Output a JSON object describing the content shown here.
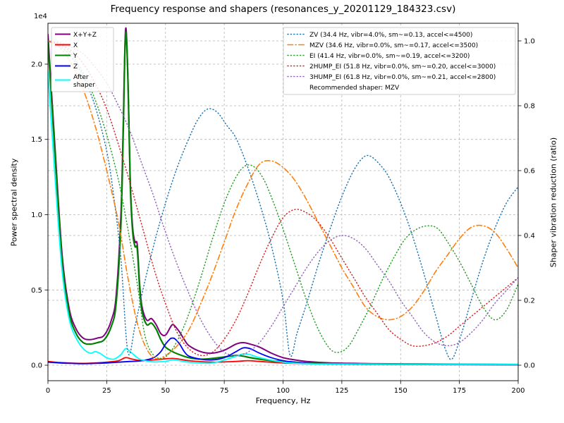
{
  "chart_data": {
    "type": "line",
    "title": "Frequency response and shapers (resonances_y_20201129_184323.csv)",
    "xlabel": "Frequency, Hz",
    "ylabel_left": "Power spectral density",
    "ylabel_right": "Shaper vibration reduction (ratio)",
    "offset_text": "1e4",
    "grid": true,
    "xlim": [
      0,
      200
    ],
    "ylim_left": [
      -1030,
      22716
    ],
    "ylim_right": [
      -0.0478,
      1.0543
    ],
    "x_ticks": [
      0,
      25,
      50,
      75,
      100,
      125,
      150,
      175,
      200
    ],
    "y_ticks_left": [
      {
        "v": 0,
        "label": "0.0"
      },
      {
        "v": 5000,
        "label": "0.5"
      },
      {
        "v": 10000,
        "label": "1.0"
      },
      {
        "v": 15000,
        "label": "1.5"
      },
      {
        "v": 20000,
        "label": "2.0"
      }
    ],
    "y_ticks_right": [
      {
        "v": 0.0,
        "label": "0.0"
      },
      {
        "v": 0.2,
        "label": "0.2"
      },
      {
        "v": 0.4,
        "label": "0.4"
      },
      {
        "v": 0.6,
        "label": "0.6"
      },
      {
        "v": 0.8,
        "label": "0.8"
      },
      {
        "v": 1.0,
        "label": "1.0"
      }
    ],
    "legend_psd": {
      "items": [
        {
          "label": "X+Y+Z",
          "color": "#800080"
        },
        {
          "label": "X",
          "color": "#ff0000"
        },
        {
          "label": "Y",
          "color": "#008000"
        },
        {
          "label": "Z",
          "color": "#0000ff"
        },
        {
          "label": "After shaper",
          "lines": [
            "After",
            "shaper"
          ],
          "color": "#00ffff"
        }
      ]
    },
    "legend_shapers": {
      "items": [
        {
          "label": "ZV (34.4 Hz, vibr=4.0%, sm~=0.13, accel<=4500)",
          "color": "#1f77b4",
          "style": "dotted"
        },
        {
          "label": "MZV (34.6 Hz, vibr=0.0%, sm~=0.17, accel<=3500)",
          "color": "#ff7f0e",
          "style": "dashdot"
        },
        {
          "label": "EI (41.4 Hz, vibr=0.0%, sm~=0.19, accel<=3200)",
          "color": "#2ca02c",
          "style": "dotted"
        },
        {
          "label": "2HUMP_EI (51.8 Hz, vibr=0.0%, sm~=0.20, accel<=3000)",
          "color": "#d62728",
          "style": "dotted"
        },
        {
          "label": "3HUMP_EI (61.8 Hz, vibr=0.0%, sm~=0.21, accel<=2800)",
          "color": "#9467bd",
          "style": "dotted"
        }
      ],
      "note": "Recommended shaper: MZV"
    },
    "series": [
      {
        "name": "psd-xyz",
        "label": "X+Y+Z",
        "axis": "left",
        "color": "#800080",
        "style": "solid",
        "width": 2,
        "x": [
          0,
          3,
          6,
          9,
          12,
          15,
          18,
          21,
          24,
          27,
          29,
          31,
          32,
          33,
          34,
          35,
          36,
          37,
          38,
          39,
          40,
          42,
          44,
          46,
          48,
          50,
          52,
          53,
          54,
          56,
          58,
          60,
          65,
          70,
          75,
          80,
          83,
          86,
          90,
          95,
          100,
          105,
          110,
          120,
          140,
          160,
          180,
          200
        ],
        "y": [
          22000,
          14500,
          7400,
          3800,
          2400,
          1800,
          1700,
          1800,
          2000,
          3000,
          4600,
          9900,
          15800,
          22300,
          19300,
          12400,
          9200,
          8200,
          8000,
          5400,
          3900,
          3000,
          3100,
          2700,
          2100,
          2000,
          2500,
          2700,
          2600,
          2200,
          1700,
          1300,
          900,
          800,
          1000,
          1400,
          1500,
          1400,
          1200,
          800,
          500,
          350,
          250,
          150,
          100,
          80,
          60,
          50
        ]
      },
      {
        "name": "psd-x",
        "label": "X",
        "axis": "left",
        "color": "#ff0000",
        "style": "solid",
        "width": 1.8,
        "x": [
          0,
          5,
          10,
          15,
          20,
          25,
          30,
          33,
          36,
          40,
          45,
          50,
          53,
          56,
          60,
          70,
          80,
          85,
          90,
          100,
          110,
          120,
          150,
          200
        ],
        "y": [
          250,
          180,
          140,
          120,
          150,
          200,
          300,
          500,
          400,
          300,
          350,
          420,
          450,
          400,
          300,
          200,
          250,
          300,
          250,
          150,
          100,
          80,
          50,
          40
        ]
      },
      {
        "name": "psd-y",
        "label": "Y",
        "axis": "left",
        "color": "#008000",
        "style": "solid",
        "width": 2.2,
        "x": [
          0,
          3,
          6,
          9,
          12,
          15,
          18,
          21,
          24,
          27,
          29,
          31,
          32,
          33,
          34,
          35,
          36,
          37,
          38,
          39,
          40,
          42,
          44,
          46,
          48,
          50,
          53,
          56,
          60,
          65,
          70,
          75,
          80,
          83,
          86,
          90,
          95,
          100,
          110,
          120,
          140,
          160,
          180,
          200
        ],
        "y": [
          21500,
          14000,
          7000,
          3500,
          2100,
          1500,
          1400,
          1500,
          1700,
          2600,
          4100,
          9200,
          15200,
          22000,
          19000,
          12100,
          8900,
          7900,
          7700,
          5100,
          3600,
          2700,
          2800,
          2400,
          1700,
          1200,
          900,
          700,
          500,
          400,
          450,
          550,
          650,
          600,
          500,
          400,
          300,
          250,
          150,
          100,
          80,
          60,
          50,
          40
        ]
      },
      {
        "name": "psd-z",
        "label": "Z",
        "axis": "left",
        "color": "#0000ff",
        "style": "solid",
        "width": 1.8,
        "x": [
          0,
          5,
          10,
          15,
          20,
          25,
          30,
          35,
          40,
          45,
          48,
          50,
          52,
          53,
          54,
          56,
          58,
          60,
          65,
          70,
          75,
          80,
          83,
          86,
          90,
          95,
          100,
          105,
          110,
          120,
          140,
          200
        ],
        "y": [
          200,
          150,
          120,
          100,
          120,
          150,
          200,
          250,
          300,
          500,
          900,
          1400,
          1750,
          1800,
          1750,
          1400,
          900,
          600,
          400,
          350,
          500,
          900,
          1150,
          1100,
          800,
          500,
          300,
          200,
          120,
          80,
          50,
          30
        ]
      },
      {
        "name": "psd-after-shaper",
        "label": "After shaper",
        "axis": "left",
        "color": "#00ffff",
        "style": "solid",
        "width": 1.8,
        "x": [
          0,
          3,
          6,
          9,
          12,
          15,
          18,
          20,
          22,
          25,
          28,
          31,
          33,
          35,
          38,
          40,
          45,
          50,
          53,
          56,
          60,
          70,
          80,
          83,
          86,
          90,
          100,
          110,
          120,
          150,
          200
        ],
        "y": [
          19500,
          12500,
          6300,
          3100,
          1800,
          1100,
          800,
          900,
          800,
          500,
          400,
          700,
          1100,
          900,
          500,
          350,
          220,
          260,
          350,
          300,
          200,
          150,
          600,
          750,
          700,
          500,
          200,
          100,
          80,
          60,
          50
        ]
      },
      {
        "name": "shaper-zv",
        "label": "ZV",
        "axis": "right",
        "color": "#1f77b4",
        "style": "dotted",
        "width": 1.5,
        "x": [
          0,
          5,
          10,
          15,
          20,
          25,
          28,
          31,
          34,
          37,
          40,
          45,
          50,
          55,
          60,
          64,
          68,
          72,
          76,
          80,
          85,
          90,
          95,
          100,
          103,
          106,
          110,
          115,
          120,
          125,
          130,
          134,
          137,
          141,
          145,
          150,
          155,
          160,
          165,
          169,
          172,
          176,
          180,
          185,
          190,
          195,
          200
        ],
        "y": [
          1.0,
          0.985,
          0.95,
          0.89,
          0.8,
          0.66,
          0.52,
          0.33,
          0.04,
          0.12,
          0.22,
          0.37,
          0.5,
          0.61,
          0.7,
          0.76,
          0.79,
          0.78,
          0.74,
          0.7,
          0.61,
          0.5,
          0.37,
          0.2,
          0.03,
          0.1,
          0.19,
          0.31,
          0.42,
          0.52,
          0.6,
          0.64,
          0.645,
          0.62,
          0.58,
          0.5,
          0.4,
          0.28,
          0.15,
          0.05,
          0.02,
          0.1,
          0.2,
          0.32,
          0.42,
          0.5,
          0.55
        ]
      },
      {
        "name": "shaper-mzv",
        "label": "MZV",
        "axis": "right",
        "color": "#ff7f0e",
        "style": "dashdot",
        "width": 1.6,
        "x": [
          0,
          5,
          10,
          15,
          20,
          25,
          30,
          34,
          38,
          42,
          46,
          50,
          55,
          60,
          65,
          70,
          75,
          80,
          85,
          90,
          95,
          100,
          105,
          110,
          115,
          120,
          125,
          130,
          135,
          140,
          145,
          150,
          155,
          160,
          165,
          170,
          175,
          180,
          185,
          190,
          195,
          200
        ],
        "y": [
          1.0,
          0.98,
          0.93,
          0.85,
          0.74,
          0.6,
          0.44,
          0.27,
          0.13,
          0.05,
          0.02,
          0.03,
          0.06,
          0.11,
          0.19,
          0.28,
          0.38,
          0.48,
          0.56,
          0.62,
          0.63,
          0.61,
          0.57,
          0.51,
          0.44,
          0.37,
          0.3,
          0.24,
          0.18,
          0.15,
          0.14,
          0.15,
          0.18,
          0.23,
          0.29,
          0.34,
          0.39,
          0.425,
          0.43,
          0.41,
          0.36,
          0.3
        ]
      },
      {
        "name": "shaper-ei",
        "label": "EI",
        "axis": "right",
        "color": "#2ca02c",
        "style": "dotted",
        "width": 1.5,
        "x": [
          0,
          5,
          10,
          15,
          20,
          25,
          30,
          34,
          38,
          41,
          44,
          48,
          52,
          56,
          60,
          65,
          70,
          75,
          80,
          84,
          88,
          92,
          96,
          100,
          105,
          110,
          115,
          120,
          124,
          128,
          132,
          137,
          142,
          147,
          152,
          157,
          162,
          166,
          170,
          175,
          180,
          185,
          190,
          195,
          200
        ],
        "y": [
          1.0,
          0.99,
          0.96,
          0.9,
          0.82,
          0.71,
          0.57,
          0.42,
          0.25,
          0.1,
          0.04,
          0.02,
          0.04,
          0.09,
          0.16,
          0.27,
          0.39,
          0.5,
          0.58,
          0.615,
          0.61,
          0.57,
          0.5,
          0.42,
          0.31,
          0.2,
          0.11,
          0.05,
          0.04,
          0.06,
          0.11,
          0.18,
          0.26,
          0.33,
          0.39,
          0.42,
          0.43,
          0.42,
          0.38,
          0.32,
          0.25,
          0.18,
          0.14,
          0.17,
          0.25
        ]
      },
      {
        "name": "shaper-2hump-ei",
        "label": "2HUMP_EI",
        "axis": "right",
        "color": "#d62728",
        "style": "dotted",
        "width": 1.5,
        "x": [
          0,
          5,
          10,
          15,
          20,
          25,
          30,
          35,
          40,
          45,
          50,
          55,
          60,
          65,
          70,
          75,
          80,
          85,
          90,
          95,
          100,
          105,
          110,
          115,
          120,
          125,
          130,
          135,
          140,
          145,
          150,
          155,
          160,
          165,
          170,
          175,
          180,
          185,
          190,
          195,
          200
        ],
        "y": [
          1.0,
          0.99,
          0.97,
          0.93,
          0.87,
          0.79,
          0.68,
          0.56,
          0.43,
          0.3,
          0.19,
          0.1,
          0.05,
          0.03,
          0.04,
          0.08,
          0.14,
          0.22,
          0.31,
          0.39,
          0.455,
          0.48,
          0.47,
          0.44,
          0.39,
          0.33,
          0.27,
          0.21,
          0.16,
          0.11,
          0.08,
          0.06,
          0.06,
          0.07,
          0.09,
          0.12,
          0.15,
          0.18,
          0.21,
          0.24,
          0.27
        ]
      },
      {
        "name": "shaper-3hump-ei",
        "label": "3HUMP_EI",
        "axis": "right",
        "color": "#9467bd",
        "style": "dotted",
        "width": 1.5,
        "x": [
          0,
          5,
          10,
          15,
          20,
          25,
          30,
          35,
          40,
          45,
          50,
          55,
          60,
          65,
          70,
          75,
          80,
          85,
          90,
          95,
          100,
          105,
          110,
          115,
          120,
          125,
          130,
          135,
          140,
          145,
          150,
          155,
          160,
          165,
          170,
          175,
          180,
          185,
          190,
          195,
          200
        ],
        "y": [
          1.0,
          0.995,
          0.98,
          0.96,
          0.92,
          0.87,
          0.8,
          0.72,
          0.62,
          0.52,
          0.41,
          0.31,
          0.22,
          0.14,
          0.08,
          0.04,
          0.03,
          0.04,
          0.07,
          0.12,
          0.18,
          0.24,
          0.3,
          0.35,
          0.385,
          0.4,
          0.39,
          0.36,
          0.31,
          0.26,
          0.2,
          0.15,
          0.1,
          0.07,
          0.06,
          0.07,
          0.1,
          0.14,
          0.19,
          0.23,
          0.27
        ]
      }
    ]
  }
}
